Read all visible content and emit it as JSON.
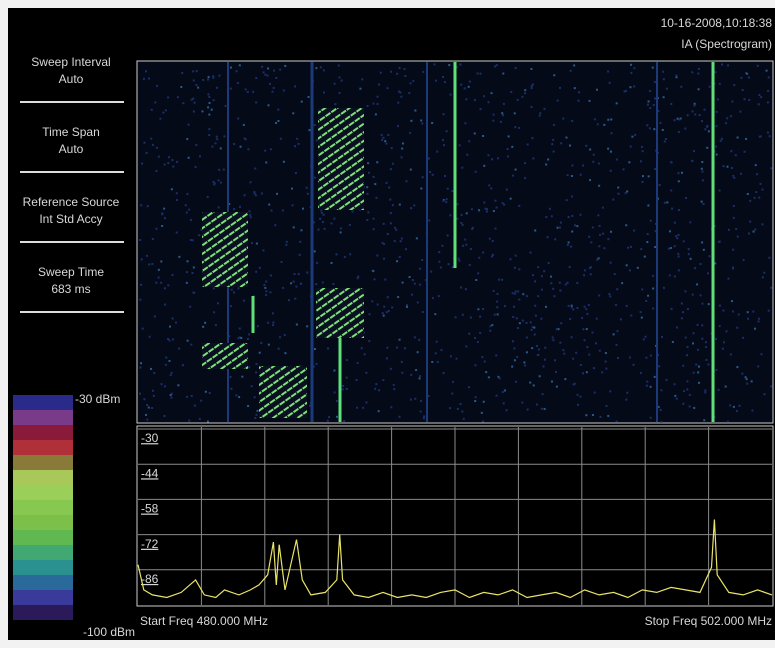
{
  "header": {
    "timestamp": "10-16-2008,10:18:38",
    "mode": "IA (Spectrogram)"
  },
  "settings": [
    {
      "label": "Sweep Interval",
      "value": "Auto"
    },
    {
      "label": "Time Span",
      "value": "Auto"
    },
    {
      "label": "Reference Source",
      "value": "Int Std Accy"
    },
    {
      "label": "Sweep Time",
      "value": "683 ms"
    }
  ],
  "color_scale": {
    "top": "-30 dBm",
    "bottom": "-100 dBm"
  },
  "chart_data": {
    "type": "line",
    "x": [
      480,
      480.2,
      480.5,
      481,
      481.5,
      482,
      482.3,
      482.7,
      483,
      483.5,
      483.9,
      484.2,
      484.5,
      484.7,
      484.8,
      484.9,
      485.1,
      485.5,
      485.7,
      486,
      486.5,
      486.9,
      487,
      487.1,
      487.5,
      488,
      488.5,
      489,
      489.5,
      490,
      490.5,
      491,
      491.5,
      492,
      492.5,
      493,
      493.5,
      494,
      494.5,
      495,
      495.5,
      496,
      496.5,
      497,
      497.5,
      498,
      498.5,
      499,
      499.5,
      499.9,
      500,
      500.1,
      500.5,
      501,
      501.5,
      502
    ],
    "values": [
      -84,
      -94,
      -96,
      -97,
      -95,
      -90,
      -96,
      -97,
      -94,
      -96,
      -94,
      -92,
      -88,
      -75,
      -92,
      -76,
      -94,
      -74,
      -90,
      -96,
      -95,
      -90,
      -72,
      -90,
      -96,
      -97,
      -95,
      -97,
      -96,
      -97,
      -95,
      -94,
      -97,
      -95,
      -96,
      -94,
      -97,
      -96,
      -95,
      -97,
      -94,
      -96,
      -95,
      -97,
      -94,
      -95,
      -93,
      -94,
      -95,
      -85,
      -66,
      -88,
      -95,
      -96,
      -94,
      -96
    ],
    "color": "#e8e46a",
    "xlim": [
      480,
      502
    ],
    "ylim": [
      -100,
      -30
    ],
    "yticks": [
      -30,
      -44,
      -58,
      -72,
      -86
    ],
    "grid": true
  },
  "footer": {
    "start": "Start Freq 480.000 MHz",
    "stop": "Stop Freq 502.000 MHz"
  }
}
